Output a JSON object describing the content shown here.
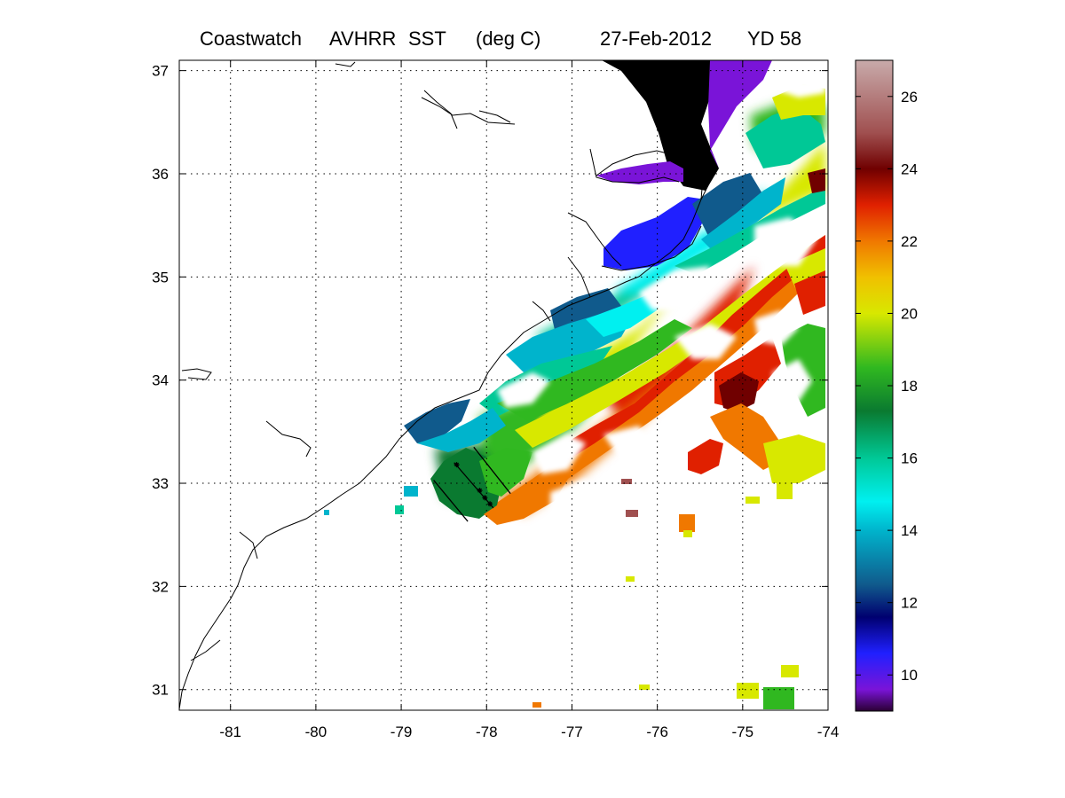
{
  "title": {
    "product": "Coastwatch",
    "sensor": "AVHRR",
    "variable": "SST",
    "units": "(deg C)",
    "date": "27-Feb-2012",
    "yearday": "YD 58"
  },
  "map": {
    "lon_range": [
      -81.6,
      -74
    ],
    "lat_range": [
      30.8,
      37.1
    ],
    "lon_ticks": [
      -81,
      -80,
      -79,
      -78,
      -77,
      -76,
      -75,
      -74
    ],
    "lat_ticks": [
      31,
      32,
      33,
      34,
      35,
      36,
      37
    ],
    "lon_tick_labels": [
      "-81",
      "-80",
      "-79",
      "-78",
      "-77",
      "-76",
      "-75",
      "-74"
    ],
    "lat_tick_labels": [
      "31",
      "32",
      "33",
      "34",
      "35",
      "36",
      "37"
    ],
    "grid": true,
    "land_color": "#ffffff",
    "coastline_color": "#000000"
  },
  "colorbar": {
    "range": [
      9,
      27
    ],
    "ticks": [
      10,
      12,
      14,
      16,
      18,
      20,
      22,
      24,
      26
    ],
    "tick_labels": [
      "10",
      "12",
      "14",
      "16",
      "18",
      "20",
      "22",
      "24",
      "26"
    ],
    "colormap": [
      {
        "v": 9.0,
        "color": "#2a0033"
      },
      {
        "v": 9.6,
        "color": "#7a14d8"
      },
      {
        "v": 10.6,
        "color": "#2020ff"
      },
      {
        "v": 11.6,
        "color": "#000070"
      },
      {
        "v": 12.5,
        "color": "#105a8c"
      },
      {
        "v": 14.0,
        "color": "#00b4cc"
      },
      {
        "v": 14.8,
        "color": "#00f0f0"
      },
      {
        "v": 16.0,
        "color": "#00c896"
      },
      {
        "v": 17.3,
        "color": "#0a7a30"
      },
      {
        "v": 18.5,
        "color": "#30b820"
      },
      {
        "v": 20.0,
        "color": "#d8e800"
      },
      {
        "v": 21.0,
        "color": "#f0c000"
      },
      {
        "v": 22.0,
        "color": "#f07800"
      },
      {
        "v": 23.0,
        "color": "#e02000"
      },
      {
        "v": 24.0,
        "color": "#700000"
      },
      {
        "v": 25.0,
        "color": "#a05050"
      },
      {
        "v": 27.0,
        "color": "#c8aaaa"
      }
    ]
  },
  "transects": [
    {
      "start": [
        -78.62,
        33.03
      ],
      "end": [
        -78.22,
        32.63
      ]
    },
    {
      "start": [
        -78.38,
        33.2
      ],
      "end": [
        -77.92,
        32.76
      ]
    },
    {
      "start": [
        -78.15,
        33.35
      ],
      "end": [
        -77.72,
        32.9
      ]
    }
  ],
  "stations": [
    [
      -78.35,
      33.18
    ],
    [
      -78.08,
      32.93
    ],
    [
      -78.02,
      32.86
    ],
    [
      -77.96,
      32.8
    ]
  ]
}
